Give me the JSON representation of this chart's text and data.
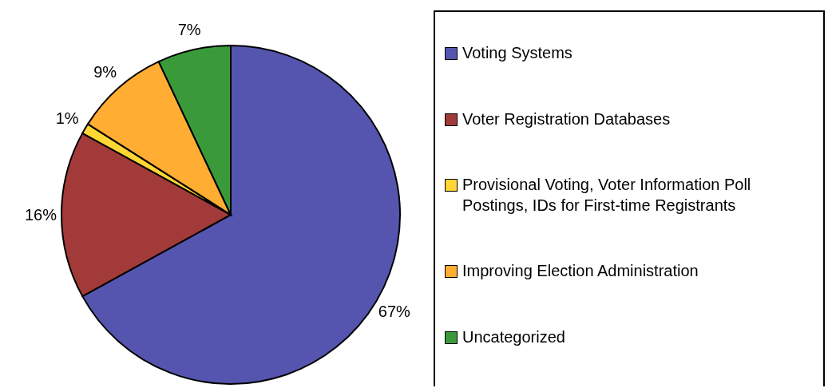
{
  "chart_data": {
    "type": "pie",
    "categories": [
      "Voting Systems",
      "Voter Registration Databases",
      "Provisional Voting, Voter Information Poll Postings, IDs for First-time Registrants",
      "Improving Election Administration",
      "Uncategorized"
    ],
    "values": [
      67,
      16,
      1,
      9,
      7
    ],
    "colors": [
      "#5555b0",
      "#a33a3a",
      "#ffd633",
      "#ffad33",
      "#3a9a3a"
    ],
    "value_labels": [
      "67%",
      "16%",
      "1%",
      "9%",
      "7%"
    ],
    "legend": "right"
  }
}
